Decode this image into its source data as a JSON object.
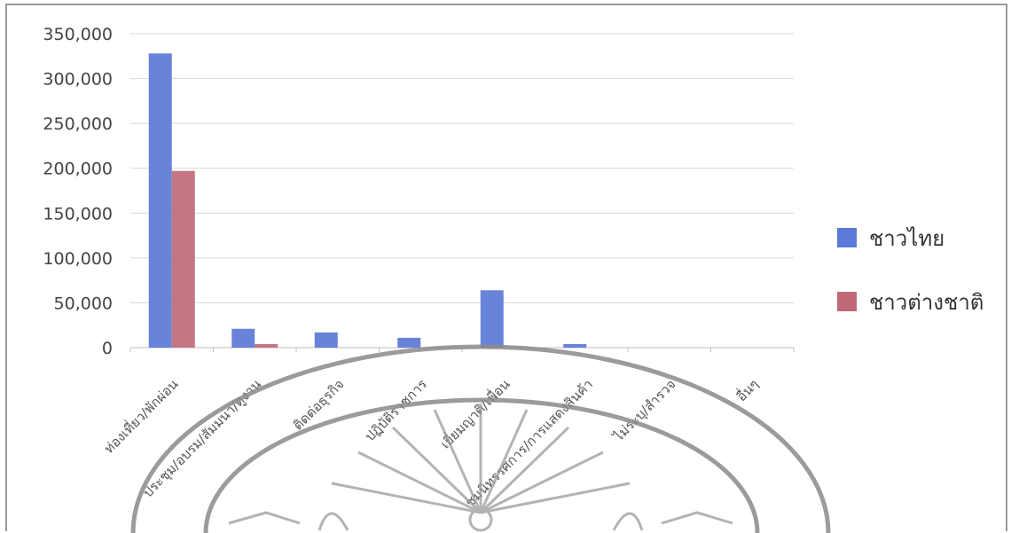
{
  "chart_data": {
    "type": "bar",
    "title": "",
    "xlabel": "",
    "ylabel": "",
    "ylim": [
      0,
      350000
    ],
    "yticks": [
      0,
      50000,
      100000,
      150000,
      200000,
      250000,
      300000,
      350000
    ],
    "ytick_labels": [
      "0",
      "50,000",
      "100,000",
      "150,000",
      "200,000",
      "250,000",
      "300,000",
      "350,000"
    ],
    "categories": [
      "ท่องเที่ยว/พักผ่อน",
      "ประชุม/อบรม/สัมมนา/ดูงาน",
      "ติดต่อธุรกิจ",
      "ปฏิบัติราชการ",
      "เยี่ยมญาติ/เพื่อน",
      "ชมนิทรรศการ/การแสดงสินค้า",
      "ไม่ระบุ/สำรวจ",
      "อื่นๆ"
    ],
    "series": [
      {
        "name": "ชาวไทย",
        "color": "#5b79d6",
        "values": [
          328000,
          21000,
          17000,
          11000,
          64000,
          4000,
          0,
          0
        ]
      },
      {
        "name": "ชาวต่างชาติ",
        "color": "#c06a78",
        "values": [
          197000,
          4000,
          0,
          0,
          0,
          0,
          0,
          0
        ]
      }
    ],
    "grid": true,
    "legend": "right"
  }
}
